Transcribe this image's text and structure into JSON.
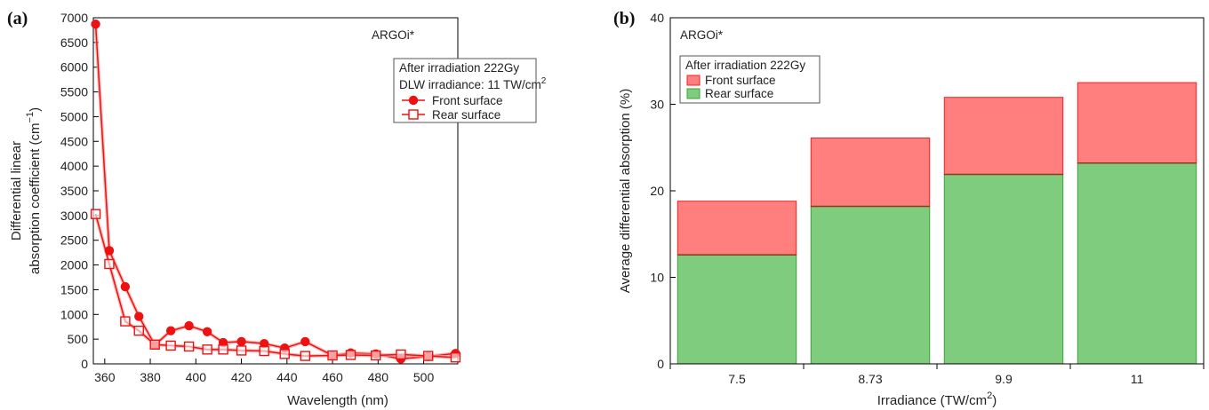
{
  "chart_data": [
    {
      "panel": "(a)",
      "type": "line",
      "annotation": "ARGOi*",
      "xlabel": "Wavelength (nm)",
      "ylabel_line1": "Differential linear",
      "ylabel_line2": "absorption coefficient (cm",
      "ylabel_sup": "−1",
      "ylabel_end": ")",
      "xlim": [
        355,
        515
      ],
      "ylim": [
        0,
        7000
      ],
      "x_ticks": [
        360,
        380,
        400,
        420,
        440,
        460,
        480,
        500
      ],
      "y_ticks": [
        0,
        500,
        1000,
        1500,
        2000,
        2500,
        3000,
        3500,
        4000,
        4500,
        5000,
        5500,
        6000,
        6500,
        7000
      ],
      "legend": {
        "title": "After irradiation 222Gy",
        "subtitle": "DLW irradiance: 11 TW/cm",
        "subtitle_sup": "2",
        "placement": "top-right"
      },
      "series": [
        {
          "name": "Front surface",
          "marker": "filled-circle",
          "color": "#ee1111",
          "x": [
            356,
            362,
            369,
            375,
            382,
            389,
            397,
            405,
            412,
            420,
            430,
            439,
            448,
            460,
            468,
            479,
            490,
            502,
            514
          ],
          "y": [
            6870,
            2290,
            1560,
            960,
            380,
            670,
            770,
            650,
            430,
            450,
            410,
            320,
            450,
            170,
            220,
            200,
            100,
            150,
            210
          ]
        },
        {
          "name": "Rear surface",
          "marker": "open-square",
          "color": "#ee1111",
          "x": [
            356,
            362,
            369,
            375,
            382,
            389,
            397,
            405,
            412,
            420,
            430,
            439,
            448,
            460,
            468,
            479,
            490,
            502,
            514
          ],
          "y": [
            3030,
            2020,
            860,
            670,
            390,
            370,
            350,
            290,
            290,
            270,
            260,
            200,
            160,
            170,
            180,
            170,
            190,
            160,
            130
          ]
        }
      ]
    },
    {
      "panel": "(b)",
      "type": "bar",
      "stacked": true,
      "annotation": "ARGOi*",
      "xlabel": "Irradiance (TW/cm",
      "xlabel_sup": "2",
      "xlabel_end": ")",
      "ylabel": "Average differential absorption (%)",
      "ylim": [
        0,
        40
      ],
      "y_ticks": [
        0,
        10,
        20,
        30,
        40
      ],
      "categories": [
        "7.5",
        "8.73",
        "9.9",
        "11"
      ],
      "legend": {
        "title": "After irradiation 222Gy",
        "placement": "top-left"
      },
      "series": [
        {
          "name": "Rear surface",
          "color": "#7fcc7f",
          "edge": "#3ca03c",
          "values": [
            12.6,
            18.2,
            21.9,
            23.2
          ]
        },
        {
          "name": "Front surface",
          "color": "#ff7f7f",
          "edge": "#ee2222",
          "values": [
            6.2,
            7.9,
            8.9,
            9.3
          ]
        }
      ]
    }
  ]
}
